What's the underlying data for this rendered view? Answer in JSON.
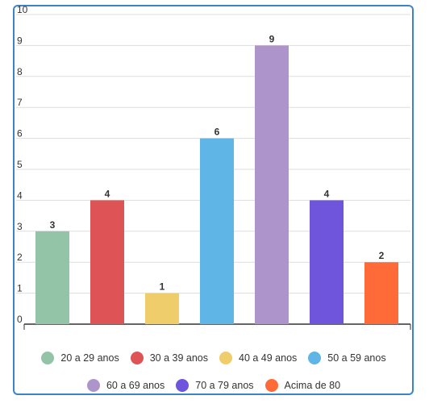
{
  "chart_data": {
    "type": "bar",
    "categories": [
      "20 a 29 anos",
      "30 a 39 anos",
      "40 a 49 anos",
      "50 a 59 anos",
      "60 a 69 anos",
      "70 a 79 anos",
      "Acima de 80"
    ],
    "values": [
      3,
      4,
      1,
      6,
      9,
      4,
      2
    ],
    "colors": [
      "#93c4a8",
      "#de5356",
      "#efcd6b",
      "#5eb5e6",
      "#ad94cb",
      "#6e55dc",
      "#fe6b38"
    ],
    "ylim": [
      0,
      10
    ],
    "yticks": [
      "0",
      "1",
      "2",
      "3",
      "4",
      "5",
      "6",
      "7",
      "8",
      "9",
      "10"
    ],
    "grid": true,
    "legend_position": "bottom"
  },
  "legend": {
    "row1": [
      {
        "label": "20 a 29 anos",
        "color": "#93c4a8"
      },
      {
        "label": "30 a 39 anos",
        "color": "#de5356"
      },
      {
        "label": "40 a 49 anos",
        "color": "#efcd6b"
      },
      {
        "label": "50 a 59 anos",
        "color": "#5eb5e6"
      }
    ],
    "row2": [
      {
        "label": "60 a 69 anos",
        "color": "#ad94cb"
      },
      {
        "label": "70 a 79 anos",
        "color": "#6e55dc"
      },
      {
        "label": "Acima de 80",
        "color": "#fe6b38"
      }
    ]
  }
}
